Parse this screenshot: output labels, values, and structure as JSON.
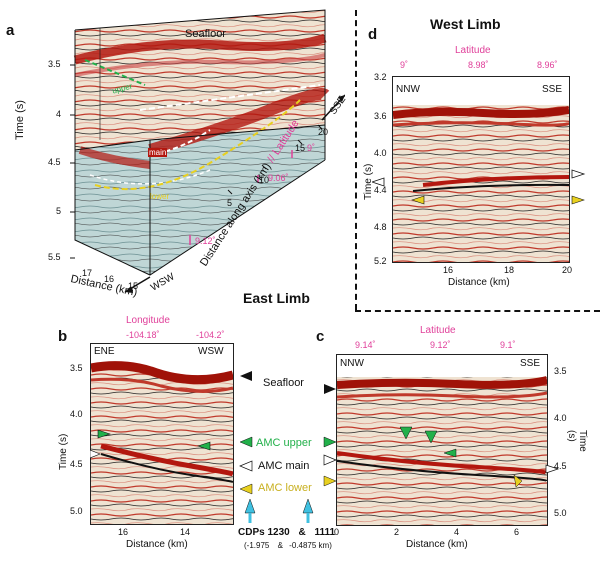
{
  "panels": {
    "a": {
      "label": "a",
      "seafloor": "Seafloor",
      "time_label": "Time (s)",
      "time_ticks": [
        "3.5",
        "4",
        "4.5",
        "5",
        "5.5"
      ],
      "dist_label": "Distance (km)",
      "dist_ticks": [
        "17",
        "16",
        "15"
      ],
      "wsw": "WSW",
      "ssE": "SSE",
      "axis_label_1": "Distance along axis (km)",
      "axis_label_sep": " // ",
      "axis_label_2": "Latitude",
      "axis_ticks": [
        "20",
        "15",
        "10",
        "5"
      ],
      "lat_ticks": [
        "9˚",
        "9.06˚",
        "9.12˚"
      ],
      "upper_tag": "upper",
      "main_tag": "main",
      "lower_tag": "lower"
    },
    "d": {
      "label": "d",
      "title": "West Limb",
      "top_label": "Latitude",
      "lat_ticks": [
        "9˚",
        "8.98˚",
        "8.96˚"
      ],
      "left_dir": "NNW",
      "right_dir": "SSE",
      "time_label": "Time (s)",
      "time_ticks": [
        "3.2",
        "3.6",
        "4.0",
        "4.4",
        "4.8",
        "5.2"
      ],
      "dist_label": "Distance (km)",
      "dist_ticks": [
        "16",
        "18",
        "20"
      ]
    },
    "b": {
      "label": "b",
      "top_label": "Longitude",
      "lon_ticks": [
        "-104.18˚",
        "-104.2˚"
      ],
      "left_dir": "ENE",
      "right_dir": "WSW",
      "time_label": "Time (s)",
      "time_ticks": [
        "3.5",
        "4.0",
        "4.5",
        "5.0"
      ],
      "dist_label": "Distance (km)",
      "dist_ticks": [
        "16",
        "14"
      ]
    },
    "c": {
      "label": "c",
      "top_label": "Latitude",
      "lat_ticks": [
        "9.14˚",
        "9.12˚",
        "9.1˚"
      ],
      "left_dir": "NNW",
      "right_dir": "SSE",
      "time_label": "Time (s)",
      "time_ticks": [
        "3.5",
        "4.0",
        "4.5",
        "5.0"
      ],
      "dist_label": "Distance (km)",
      "dist_ticks": [
        "0",
        "2",
        "4",
        "6"
      ]
    }
  },
  "east_limb": "East Limb",
  "legend": {
    "seafloor": "Seafloor",
    "amc_upper": "AMC upper",
    "amc_main": "AMC main",
    "amc_lower": "AMC lower",
    "cdps_label": "CDPs 1230",
    "amp": "&",
    "cdp2": "1111",
    "coords1": "(-1.975",
    "amp2": "&",
    "coords2": "-0.4875 km)"
  },
  "colors": {
    "green": "#22b04a",
    "white": "#ffffff",
    "yellow": "#e8d020",
    "cyan": "#3fc0e0",
    "pink": "#e0409a"
  }
}
